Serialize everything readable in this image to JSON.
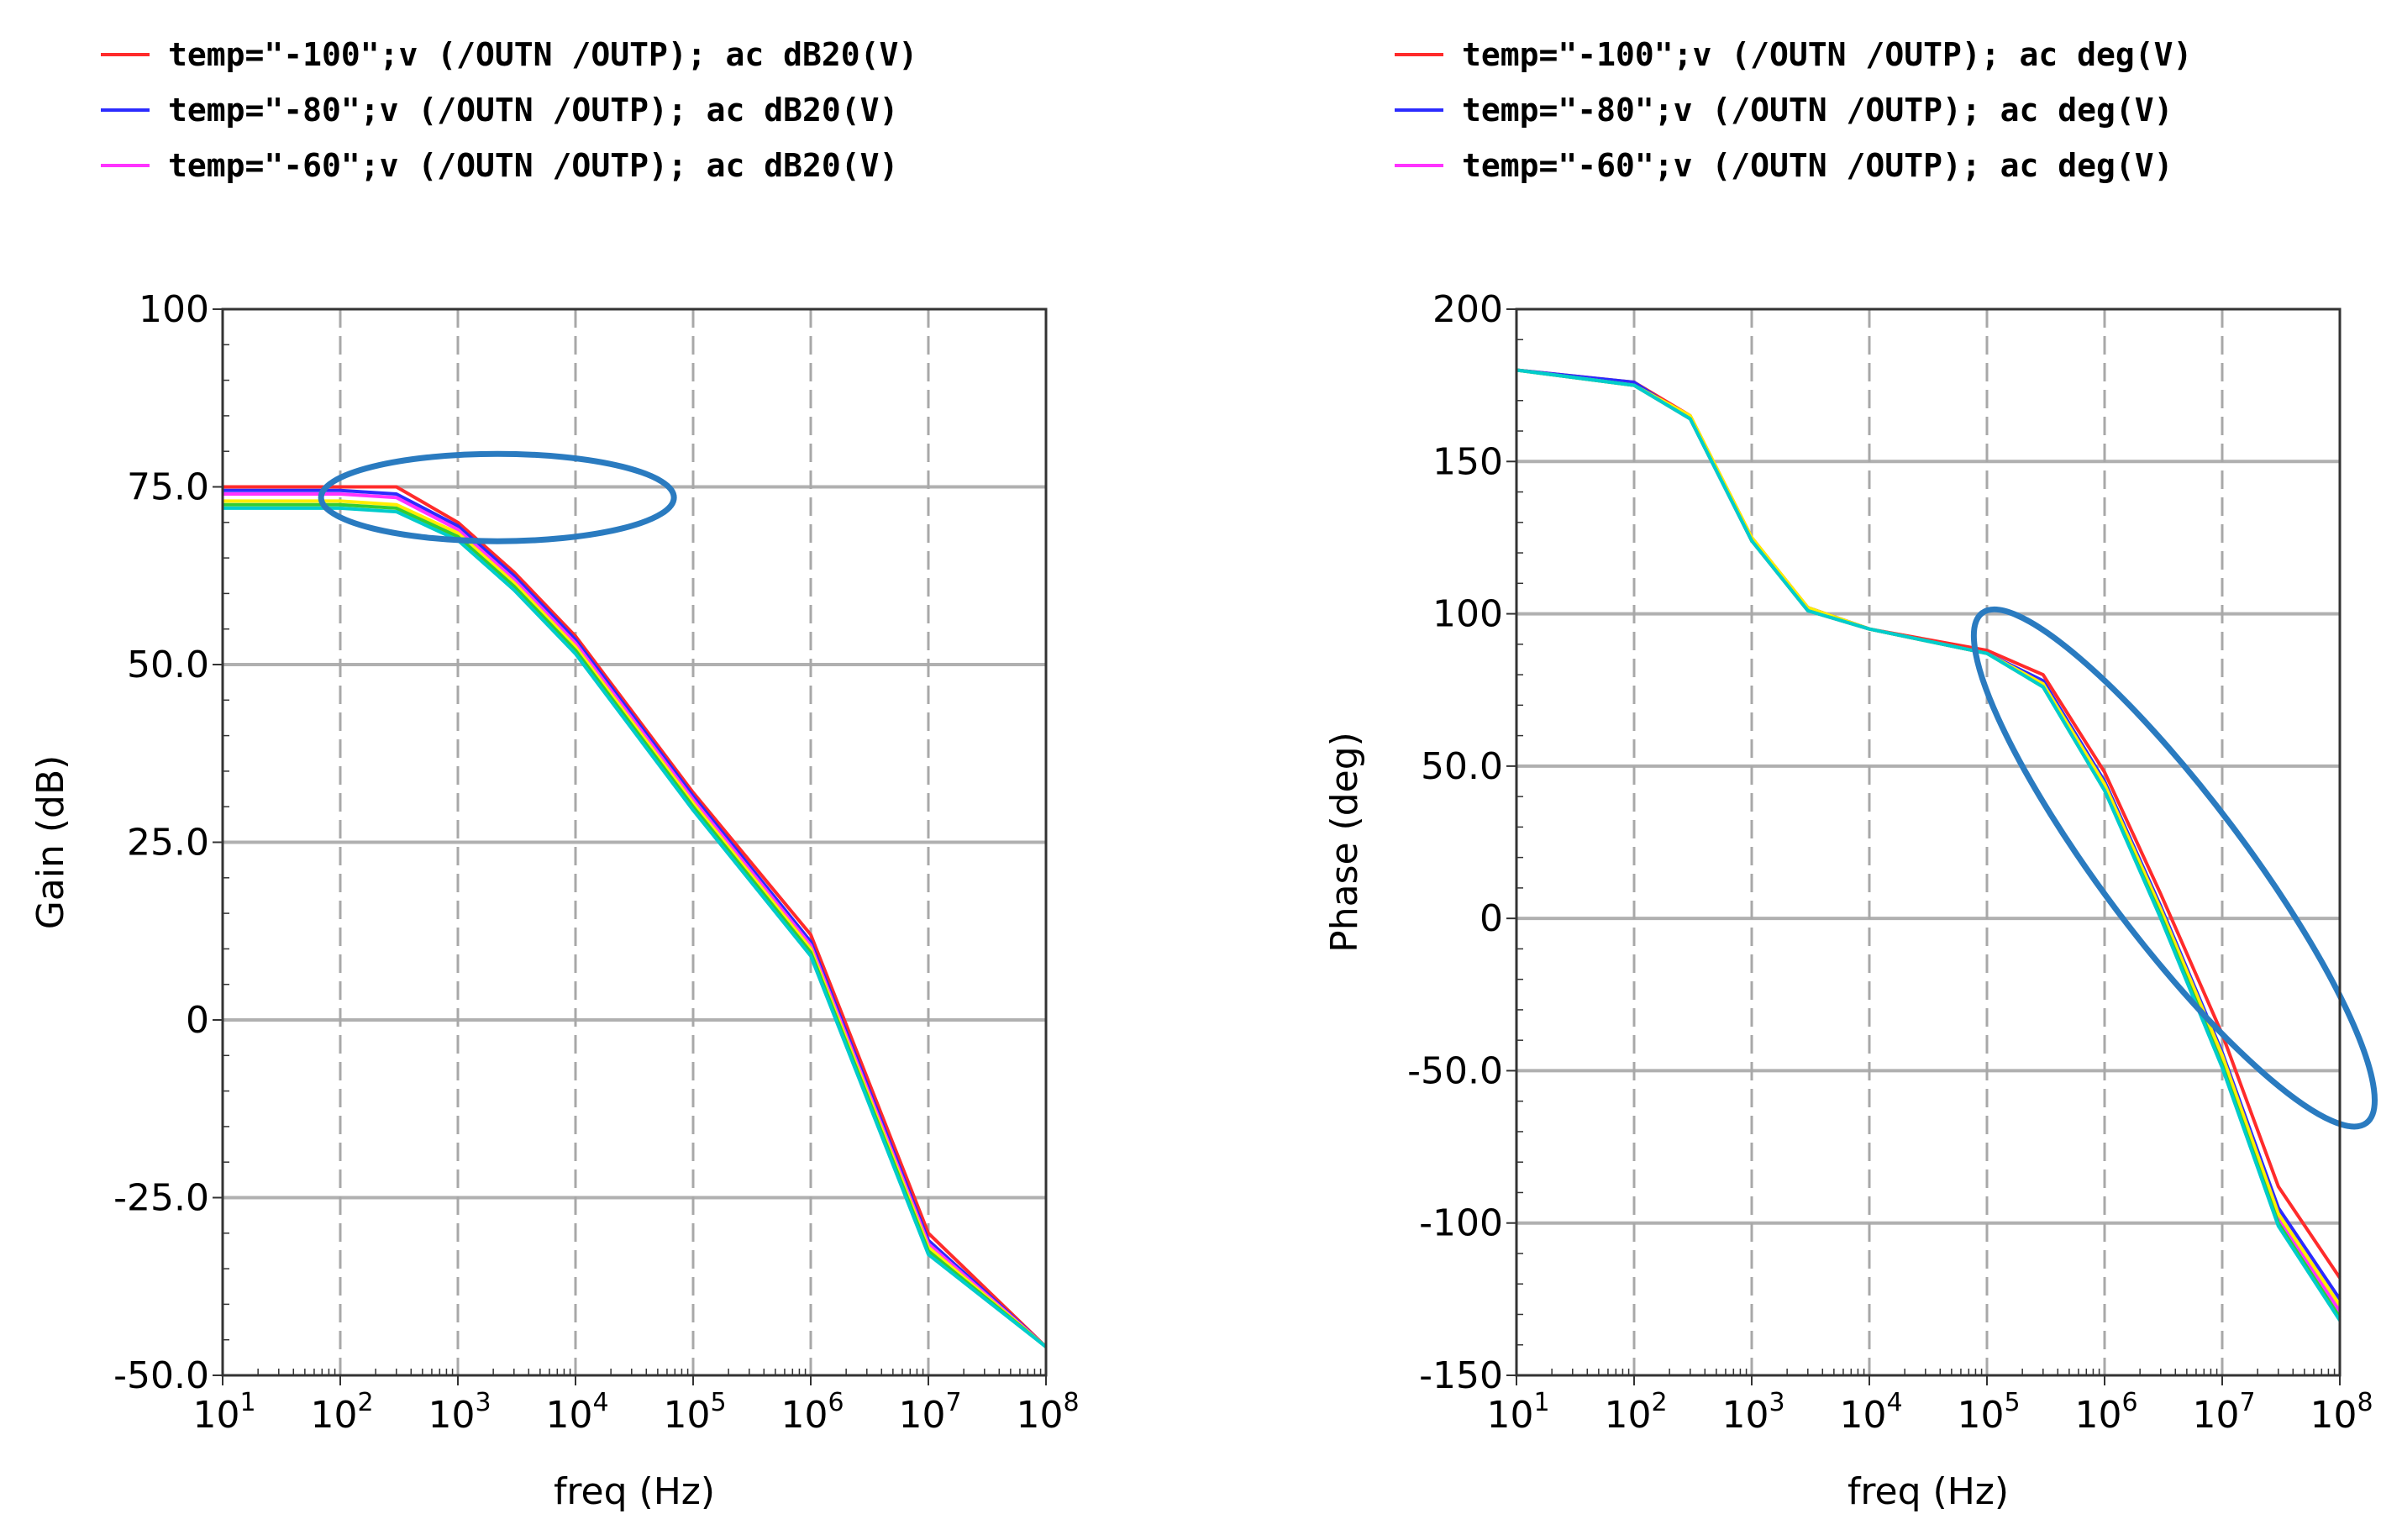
{
  "chart_data": [
    {
      "type": "line",
      "title": "",
      "xlabel": "freq (Hz)",
      "ylabel": "Gain (dB)",
      "xscale": "log",
      "xlim": [
        10,
        100000000
      ],
      "ylim": [
        -50,
        100
      ],
      "grid": true,
      "legend_position": "top-left",
      "x_ticks": [
        {
          "base": "10",
          "exp": "1"
        },
        {
          "base": "10",
          "exp": "2"
        },
        {
          "base": "10",
          "exp": "3"
        },
        {
          "base": "10",
          "exp": "4"
        },
        {
          "base": "10",
          "exp": "5"
        },
        {
          "base": "10",
          "exp": "6"
        },
        {
          "base": "10",
          "exp": "7"
        },
        {
          "base": "10",
          "exp": "8"
        }
      ],
      "y_ticks": [
        "100",
        "75.0",
        "50.0",
        "25.0",
        "0",
        "-25.0",
        "-50.0"
      ],
      "legend": [
        {
          "name": "temp=\"-100\";v (/OUTN /OUTP); ac dB20(V)",
          "color": "#ff2b2b"
        },
        {
          "name": "temp=\"-80\";v (/OUTN /OUTP); ac dB20(V)",
          "color": "#2b2bff"
        },
        {
          "name": "temp=\"-60\";v (/OUTN /OUTP); ac dB20(V)",
          "color": "#ff33ff"
        }
      ],
      "annotation": {
        "shape": "ellipse",
        "color": "#2a7bc0",
        "center": [
          200,
          73.5
        ]
      },
      "series": [
        {
          "color": "#ff2b2b",
          "x": [
            10,
            100,
            300,
            1000,
            3000,
            10000,
            100000,
            1000000,
            10000000,
            100000000
          ],
          "y": [
            75,
            75,
            75,
            70,
            63,
            54,
            32,
            12,
            -30,
            -46
          ]
        },
        {
          "color": "#2b2bff",
          "x": [
            10,
            100,
            300,
            1000,
            3000,
            10000,
            100000,
            1000000,
            10000000,
            100000000
          ],
          "y": [
            74.5,
            74.5,
            74,
            69.5,
            62.5,
            53.5,
            31.5,
            11,
            -31,
            -46
          ]
        },
        {
          "color": "#ff33ff",
          "x": [
            10,
            100,
            300,
            1000,
            3000,
            10000,
            100000,
            1000000,
            10000000,
            100000000
          ],
          "y": [
            74,
            74,
            73.5,
            69,
            62,
            53,
            31,
            10.5,
            -31.5,
            -46
          ]
        },
        {
          "color": "#ffee00",
          "x": [
            10,
            100,
            300,
            1000,
            3000,
            10000,
            100000,
            1000000,
            10000000,
            100000000
          ],
          "y": [
            73,
            73,
            72.5,
            68.5,
            61.5,
            52.5,
            30.5,
            10,
            -32,
            -46
          ]
        },
        {
          "color": "#33cc33",
          "x": [
            10,
            100,
            300,
            1000,
            3000,
            10000,
            100000,
            1000000,
            10000000,
            100000000
          ],
          "y": [
            72.5,
            72.5,
            72,
            68,
            61,
            52,
            30,
            9.5,
            -32.5,
            -46
          ]
        },
        {
          "color": "#00cccc",
          "x": [
            10,
            100,
            300,
            1000,
            3000,
            10000,
            100000,
            1000000,
            10000000,
            100000000
          ],
          "y": [
            72,
            72,
            71.5,
            67.5,
            60.5,
            51.5,
            29.5,
            9,
            -33,
            -46
          ]
        }
      ]
    },
    {
      "type": "line",
      "title": "",
      "xlabel": "freq (Hz)",
      "ylabel": "Phase (deg)",
      "xscale": "log",
      "xlim": [
        10,
        100000000
      ],
      "ylim": [
        -150,
        200
      ],
      "grid": true,
      "legend_position": "top-left",
      "x_ticks": [
        {
          "base": "10",
          "exp": "1"
        },
        {
          "base": "10",
          "exp": "2"
        },
        {
          "base": "10",
          "exp": "3"
        },
        {
          "base": "10",
          "exp": "4"
        },
        {
          "base": "10",
          "exp": "5"
        },
        {
          "base": "10",
          "exp": "6"
        },
        {
          "base": "10",
          "exp": "7"
        },
        {
          "base": "10",
          "exp": "8"
        }
      ],
      "y_ticks": [
        "200",
        "150",
        "100",
        "50.0",
        "0",
        "-50.0",
        "-100",
        "-150"
      ],
      "legend": [
        {
          "name": "temp=\"-100\";v (/OUTN /OUTP); ac deg(V)",
          "color": "#ff2b2b"
        },
        {
          "name": "temp=\"-80\";v (/OUTN /OUTP); ac deg(V)",
          "color": "#2b2bff"
        },
        {
          "name": "temp=\"-60\";v (/OUTN /OUTP); ac deg(V)",
          "color": "#ff33ff"
        }
      ],
      "annotation": {
        "shape": "ellipse",
        "color": "#2a7bc0",
        "center": [
          2200000,
          0
        ]
      },
      "series": [
        {
          "color": "#ff2b2b",
          "x": [
            10,
            100,
            300,
            1000,
            3000,
            10000,
            100000,
            300000,
            1000000,
            3000000,
            10000000,
            30000000,
            100000000
          ],
          "y": [
            180,
            176,
            165,
            125,
            102,
            95,
            88,
            80,
            48,
            8,
            -38,
            -88,
            -118
          ]
        },
        {
          "color": "#2b2bff",
          "x": [
            10,
            100,
            300,
            1000,
            3000,
            10000,
            100000,
            300000,
            1000000,
            3000000,
            10000000,
            30000000,
            100000000
          ],
          "y": [
            180,
            176,
            164,
            124,
            102,
            95,
            87,
            78,
            45,
            4,
            -44,
            -95,
            -125
          ]
        },
        {
          "color": "#ff33ff",
          "x": [
            10,
            100,
            300,
            1000,
            3000,
            10000,
            100000,
            300000,
            1000000,
            3000000,
            10000000,
            30000000,
            100000000
          ],
          "y": [
            180,
            175,
            164,
            124,
            101,
            95,
            87,
            77,
            43,
            2,
            -47,
            -98,
            -129
          ]
        },
        {
          "color": "#ffee00",
          "x": [
            10,
            100,
            300,
            1000,
            3000,
            10000,
            100000,
            300000,
            1000000,
            3000000,
            10000000,
            30000000,
            100000000
          ],
          "y": [
            180,
            175,
            165,
            125,
            102,
            95,
            87,
            77,
            44,
            3,
            -45,
            -97,
            -127
          ]
        },
        {
          "color": "#33cc33",
          "x": [
            10,
            100,
            300,
            1000,
            3000,
            10000,
            100000,
            300000,
            1000000,
            3000000,
            10000000,
            30000000,
            100000000
          ],
          "y": [
            180,
            175,
            164,
            124,
            101,
            95,
            87,
            76,
            42,
            1,
            -48,
            -100,
            -131
          ]
        },
        {
          "color": "#00cccc",
          "x": [
            10,
            100,
            300,
            1000,
            3000,
            10000,
            100000,
            300000,
            1000000,
            3000000,
            10000000,
            30000000,
            100000000
          ],
          "y": [
            180,
            175,
            164,
            124,
            101,
            95,
            87,
            76,
            42,
            0,
            -49,
            -101,
            -132
          ]
        }
      ]
    }
  ]
}
